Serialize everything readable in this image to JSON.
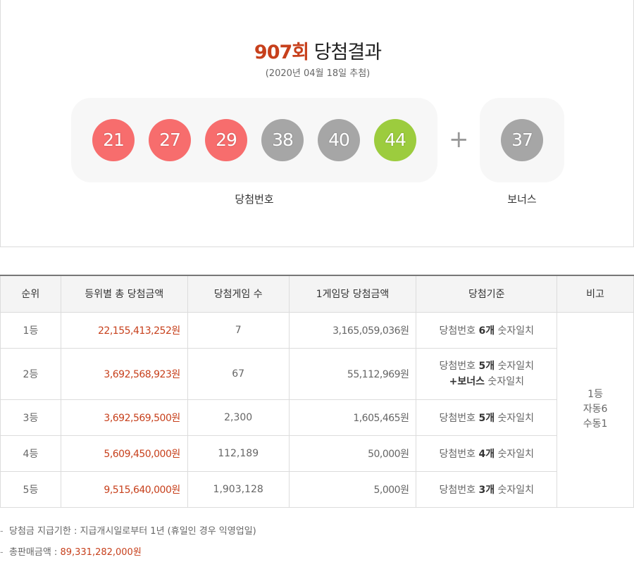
{
  "header": {
    "round": "907회",
    "title_suffix": "당첨결과",
    "draw_date": "(2020년 04월 18일 추첨)"
  },
  "winning": {
    "label": "당첨번호",
    "numbers": [
      {
        "value": "21",
        "color": "#f76d6d"
      },
      {
        "value": "27",
        "color": "#f76d6d"
      },
      {
        "value": "29",
        "color": "#f76d6d"
      },
      {
        "value": "38",
        "color": "#a6a6a6"
      },
      {
        "value": "40",
        "color": "#a6a6a6"
      },
      {
        "value": "44",
        "color": "#9ccc3e"
      }
    ],
    "plus_symbol": "+",
    "bonus_label": "보너스",
    "bonus": {
      "value": "37",
      "color": "#a6a6a6"
    }
  },
  "table": {
    "headers": [
      "순위",
      "등위별 총 당첨금액",
      "당첨게임 수",
      "1게임당 당첨금액",
      "당첨기준",
      "비고"
    ],
    "rows": [
      {
        "rank": "1등",
        "total": "22,155,413,252원",
        "games": "7",
        "per_game": "3,165,059,036원",
        "crit_pre": "당첨번호 ",
        "crit_bold": "6개",
        "crit_post": " 숫자일치"
      },
      {
        "rank": "2등",
        "total": "3,692,568,923원",
        "games": "67",
        "per_game": "55,112,969원",
        "crit_pre": "당첨번호 ",
        "crit_bold": "5개",
        "crit_post": " 숫자일치",
        "crit2_pre": "+",
        "crit2_bold": "보너스",
        "crit2_post": " 숫자일치"
      },
      {
        "rank": "3등",
        "total": "3,692,569,500원",
        "games": "2,300",
        "per_game": "1,605,465원",
        "crit_pre": "당첨번호 ",
        "crit_bold": "5개",
        "crit_post": " 숫자일치"
      },
      {
        "rank": "4등",
        "total": "5,609,450,000원",
        "games": "112,189",
        "per_game": "50,000원",
        "crit_pre": "당첨번호 ",
        "crit_bold": "4개",
        "crit_post": " 숫자일치"
      },
      {
        "rank": "5등",
        "total": "9,515,640,000원",
        "games": "1,903,128",
        "per_game": "5,000원",
        "crit_pre": "당첨번호 ",
        "crit_bold": "3개",
        "crit_post": " 숫자일치"
      }
    ],
    "remarks": [
      "1등",
      "자동6",
      "수동1"
    ]
  },
  "notes": {
    "dash": "-",
    "payout_deadline": "당첨금 지급기한 : 지급개시일로부터 1년 (휴일인 경우 익영업일)",
    "sales_label": "총판매금액 : ",
    "sales_value": "89,331,282,000원"
  }
}
